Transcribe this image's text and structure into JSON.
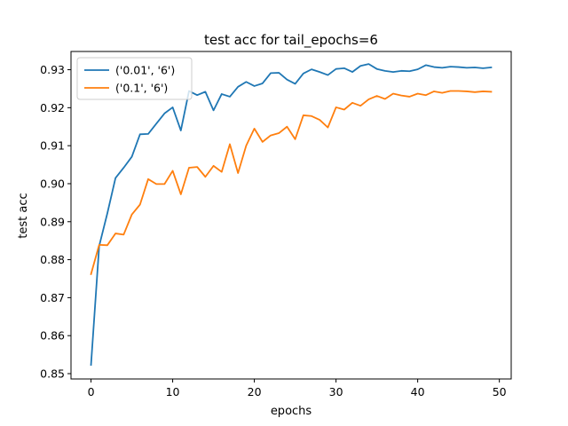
{
  "chart_data": {
    "type": "line",
    "title": "test acc for tail_epochs=6",
    "xlabel": "epochs",
    "ylabel": "test acc",
    "xlim": [
      -2.45,
      51.45
    ],
    "ylim": [
      0.8486,
      0.9348
    ],
    "xticks": [
      0,
      10,
      20,
      30,
      40,
      50
    ],
    "yticks": [
      0.85,
      0.86,
      0.87,
      0.88,
      0.89,
      0.9,
      0.91,
      0.92,
      0.93
    ],
    "ytick_labels": [
      "0.85",
      "0.86",
      "0.87",
      "0.88",
      "0.89",
      "0.90",
      "0.91",
      "0.92",
      "0.93"
    ],
    "grid": false,
    "legend_position": "upper-left",
    "x": [
      0,
      1,
      2,
      3,
      4,
      5,
      6,
      7,
      8,
      9,
      10,
      11,
      12,
      13,
      14,
      15,
      16,
      17,
      18,
      19,
      20,
      21,
      22,
      23,
      24,
      25,
      26,
      27,
      28,
      29,
      30,
      31,
      32,
      33,
      34,
      35,
      36,
      37,
      38,
      39,
      40,
      41,
      42,
      43,
      44,
      45,
      46,
      47,
      48,
      49
    ],
    "series": [
      {
        "name": "('0.01', '6')",
        "color": "#1f77b4",
        "values": [
          0.8523,
          0.8836,
          0.8922,
          0.9015,
          0.9042,
          0.9071,
          0.913,
          0.9131,
          0.9158,
          0.9185,
          0.9201,
          0.914,
          0.9244,
          0.9233,
          0.9242,
          0.9193,
          0.9236,
          0.9229,
          0.9255,
          0.9268,
          0.9257,
          0.9264,
          0.9291,
          0.9292,
          0.9274,
          0.9263,
          0.929,
          0.9301,
          0.9294,
          0.9286,
          0.9302,
          0.9304,
          0.9294,
          0.931,
          0.9315,
          0.9302,
          0.9297,
          0.9294,
          0.9297,
          0.9296,
          0.9301,
          0.9312,
          0.9307,
          0.9305,
          0.9308,
          0.9307,
          0.9305,
          0.9306,
          0.9304,
          0.9306
        ]
      },
      {
        "name": "('0.1', '6')",
        "color": "#ff7f0e",
        "values": [
          0.8762,
          0.8839,
          0.8838,
          0.8869,
          0.8866,
          0.8919,
          0.8945,
          0.9012,
          0.8999,
          0.8999,
          0.9034,
          0.8972,
          0.9042,
          0.9044,
          0.9018,
          0.9047,
          0.9031,
          0.9104,
          0.9028,
          0.91,
          0.9145,
          0.911,
          0.9127,
          0.9133,
          0.915,
          0.9117,
          0.918,
          0.9178,
          0.9168,
          0.9148,
          0.9201,
          0.9195,
          0.9213,
          0.9205,
          0.9222,
          0.9231,
          0.9223,
          0.9237,
          0.9232,
          0.9229,
          0.9237,
          0.9233,
          0.9243,
          0.9239,
          0.9244,
          0.9244,
          0.9243,
          0.9241,
          0.9243,
          0.9242
        ]
      }
    ]
  }
}
